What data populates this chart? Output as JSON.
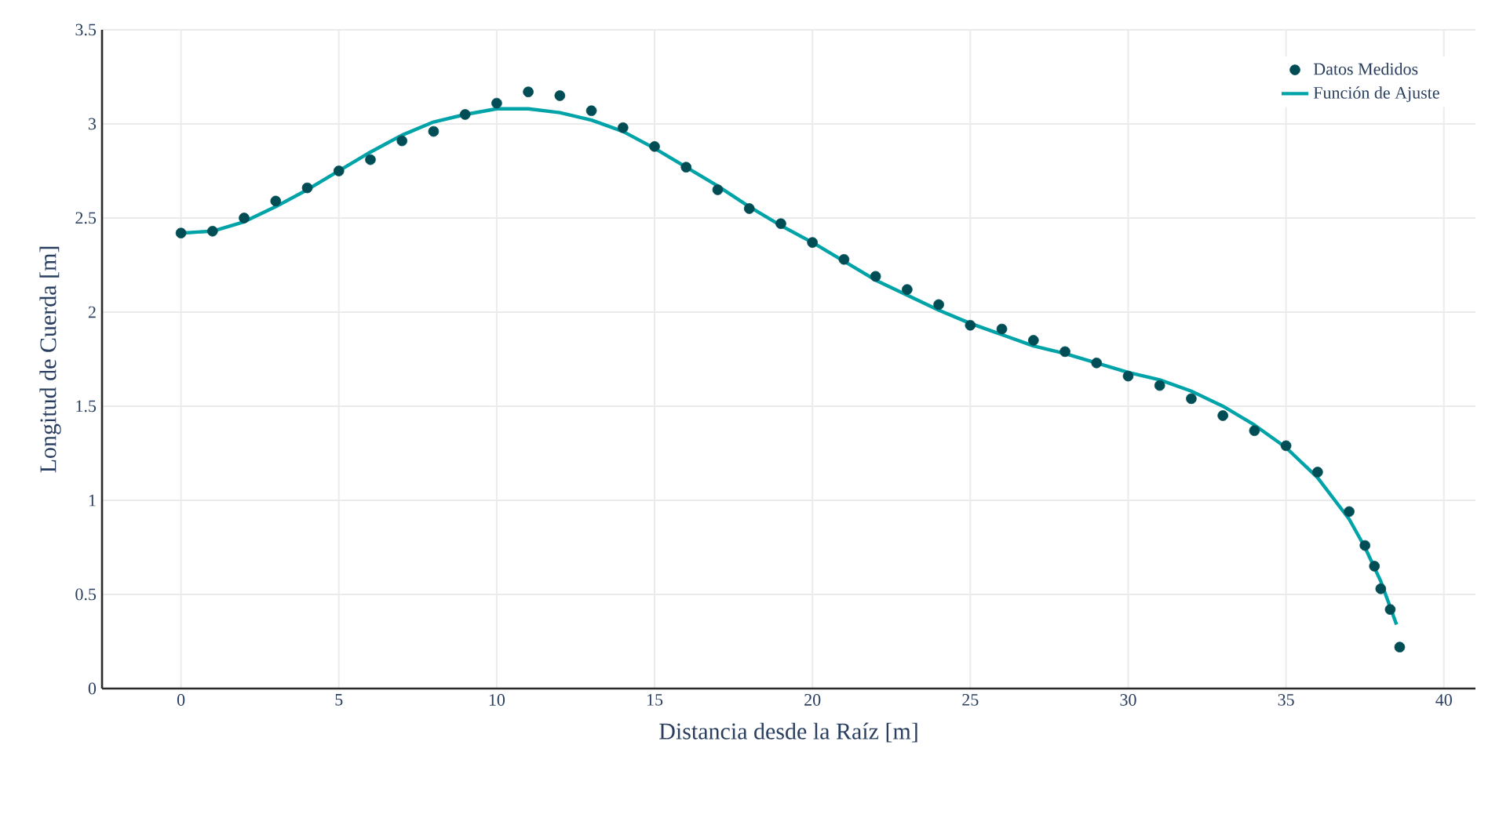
{
  "chart_data": {
    "type": "scatter",
    "xlabel": "Distancia desde la Raíz [m]",
    "ylabel": "Longitud de Cuerda [m]",
    "xlim": [
      -2.5,
      41
    ],
    "ylim": [
      0,
      3.5
    ],
    "xticks": [
      0,
      5,
      10,
      15,
      20,
      25,
      30,
      35,
      40
    ],
    "yticks": [
      0,
      0.5,
      1,
      1.5,
      2,
      2.5,
      3,
      3.5
    ],
    "grid": true,
    "legend": "top right",
    "series": [
      {
        "name": "Datos Medidos",
        "marker": "circle",
        "color": "#004d55",
        "x": [
          0,
          1,
          2,
          3,
          4,
          5,
          6,
          7,
          8,
          9,
          10,
          11,
          12,
          13,
          14,
          15,
          16,
          17,
          18,
          19,
          20,
          21,
          22,
          23,
          24,
          25,
          26,
          27,
          28,
          29,
          30,
          31,
          32,
          33,
          34,
          35,
          36,
          37,
          37.5,
          37.8,
          38,
          38.3,
          38.6
        ],
        "values": [
          2.42,
          2.43,
          2.5,
          2.59,
          2.66,
          2.75,
          2.81,
          2.91,
          2.96,
          3.05,
          3.11,
          3.17,
          3.15,
          3.07,
          2.98,
          2.88,
          2.77,
          2.65,
          2.55,
          2.47,
          2.37,
          2.28,
          2.19,
          2.12,
          2.04,
          1.93,
          1.91,
          1.85,
          1.79,
          1.73,
          1.66,
          1.61,
          1.54,
          1.45,
          1.37,
          1.29,
          1.15,
          0.94,
          0.76,
          0.65,
          0.53,
          0.42,
          0.22
        ]
      },
      {
        "name": "Función de Ajuste",
        "type": "line",
        "color": "#00a3a8",
        "x": [
          0,
          1,
          2,
          3,
          4,
          5,
          6,
          7,
          8,
          9,
          10,
          11,
          12,
          13,
          14,
          15,
          16,
          17,
          18,
          19,
          20,
          21,
          22,
          23,
          24,
          25,
          26,
          27,
          28,
          29,
          30,
          31,
          32,
          33,
          34,
          35,
          36,
          37,
          37.5,
          38,
          38.5
        ],
        "values": [
          2.42,
          2.43,
          2.48,
          2.56,
          2.65,
          2.75,
          2.85,
          2.94,
          3.01,
          3.05,
          3.08,
          3.08,
          3.06,
          3.02,
          2.96,
          2.87,
          2.77,
          2.67,
          2.56,
          2.46,
          2.37,
          2.27,
          2.17,
          2.09,
          2.01,
          1.94,
          1.88,
          1.82,
          1.78,
          1.73,
          1.68,
          1.64,
          1.58,
          1.5,
          1.4,
          1.28,
          1.12,
          0.9,
          0.75,
          0.57,
          0.34
        ]
      }
    ]
  }
}
